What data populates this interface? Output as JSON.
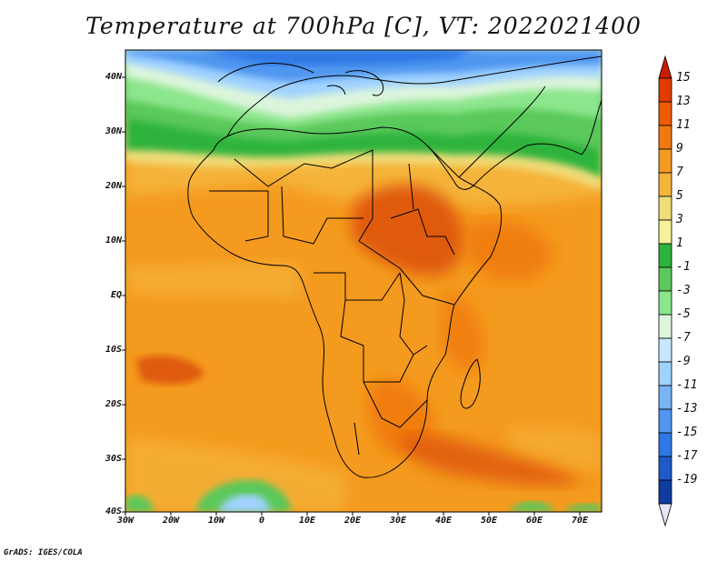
{
  "title": "Temperature at 700hPa [C], VT: 2022021400",
  "credit": "GrADS: IGES/COLA",
  "lat_labels": [
    "40N",
    "30N",
    "20N",
    "10N",
    "EQ",
    "10S",
    "20S",
    "30S",
    "40S"
  ],
  "lon_labels": [
    "30W",
    "20W",
    "10W",
    "0",
    "10E",
    "20E",
    "30E",
    "40E",
    "50E",
    "60E",
    "70E"
  ],
  "colorbar": {
    "labels": [
      "15",
      "13",
      "11",
      "9",
      "7",
      "5",
      "3",
      "1",
      "-1",
      "-3",
      "-5",
      "-7",
      "-9",
      "-11",
      "-13",
      "-15",
      "-17",
      "-19"
    ],
    "colors": [
      "#c81e00",
      "#e03c00",
      "#f05a00",
      "#f07a10",
      "#f59a20",
      "#f5b43a",
      "#f0dc78",
      "#f5f09a",
      "#2db43c",
      "#5ac85a",
      "#8ce68c",
      "#dcf5dc",
      "#c8e6ff",
      "#a0d2ff",
      "#78b4f5",
      "#5096f0",
      "#2d78e6",
      "#1e5ac8",
      "#0f3ca0",
      "#0a1e78"
    ]
  }
}
